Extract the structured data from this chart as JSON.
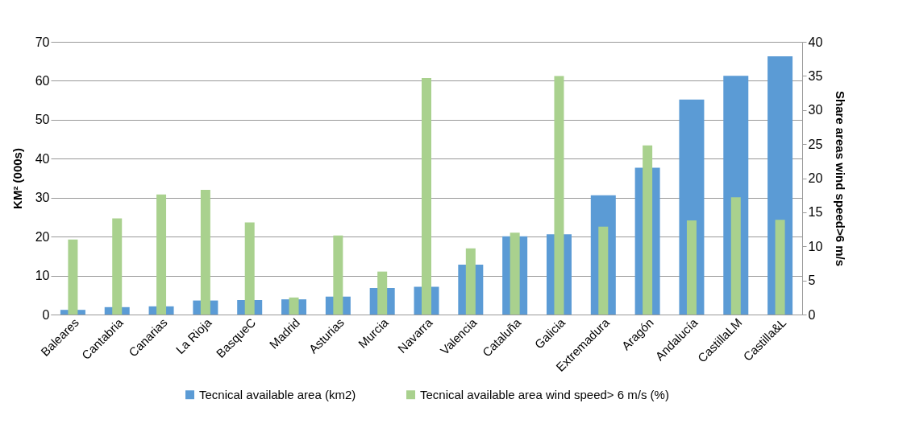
{
  "chart_data": {
    "type": "bar",
    "ylabel": "KM² (000s)",
    "y2label": "Share areas wind speed>6 m/s",
    "categories": [
      "Baleares",
      "Cantabria",
      "Canarias",
      "La Rioja",
      "BasqueC",
      "Madrid",
      "Asturias",
      "Murcia",
      "Navarra",
      "Valencia",
      "Cataluña",
      "Galicia",
      "Extremadura",
      "Aragón",
      "Andalucía",
      "CastillaLM",
      "Castilla&L"
    ],
    "series": [
      {
        "name": "Tecnical available area (km2)",
        "color": "#5b9bd5",
        "values": [
          1.2,
          1.9,
          2.1,
          3.6,
          3.7,
          3.9,
          4.6,
          6.8,
          7.1,
          12.8,
          20.1,
          20.6,
          30.6,
          37.7,
          55.2,
          61.3,
          66.3
        ]
      },
      {
        "name": "Tecnical available area wind speed> 6 m/s (%)",
        "color": "#a9d18e",
        "axis": "y2",
        "values": [
          11.0,
          14.1,
          17.6,
          18.3,
          13.5,
          2.5,
          11.6,
          6.3,
          34.7,
          9.7,
          12.0,
          35.0,
          12.9,
          24.8,
          13.8,
          17.2,
          13.9
        ]
      }
    ],
    "ylim": [
      0,
      70
    ],
    "yticks": [
      0,
      10,
      20,
      30,
      40,
      50,
      60,
      70
    ],
    "y2lim": [
      0,
      40
    ],
    "y2ticks": [
      0,
      5,
      10,
      15,
      20,
      25,
      30,
      35,
      40
    ],
    "grid": "y",
    "legend": "bottom"
  }
}
